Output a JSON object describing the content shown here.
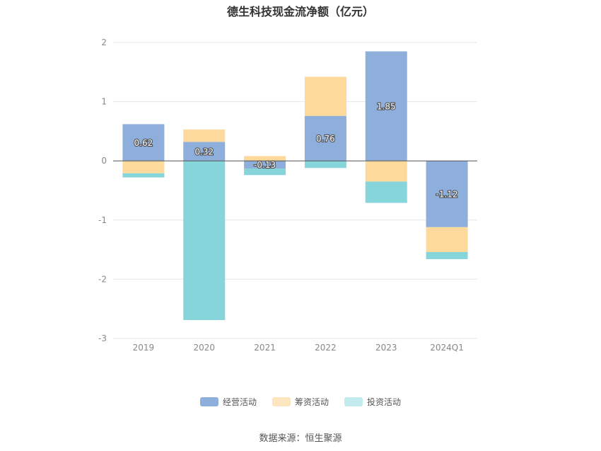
{
  "chart_data": {
    "type": "bar",
    "stacked": true,
    "title": "德生科技现金流净额（亿元）",
    "categories": [
      "2019",
      "2020",
      "2021",
      "2022",
      "2023",
      "2024Q1"
    ],
    "ylim": [
      -3,
      2
    ],
    "yticks": [
      2,
      1,
      0,
      -1,
      -2,
      -3
    ],
    "series": [
      {
        "name": "经营活动",
        "color": "#8eaedc",
        "values": [
          0.62,
          0.32,
          -0.13,
          0.76,
          1.85,
          -1.12
        ],
        "labels": [
          "0.62",
          "0.32",
          "-0.13",
          "0.76",
          "1.85",
          "-1.12"
        ]
      },
      {
        "name": "筹资活动",
        "color": "#fdd99b",
        "values": [
          -0.21,
          0.21,
          0.08,
          0.66,
          -0.35,
          -0.42
        ]
      },
      {
        "name": "投资活动",
        "color": "#86d5da",
        "values": [
          -0.07,
          -2.69,
          -0.11,
          -0.12,
          -0.36,
          -0.12
        ]
      }
    ],
    "legend_position": "bottom",
    "grid": true
  },
  "legend": [
    {
      "label": "经营活动",
      "color": "#8eaedc"
    },
    {
      "label": "筹资活动",
      "color": "#fdd99b"
    },
    {
      "label": "投资活动",
      "color": "#c2ebee"
    }
  ],
  "source": "数据来源：恒生聚源"
}
